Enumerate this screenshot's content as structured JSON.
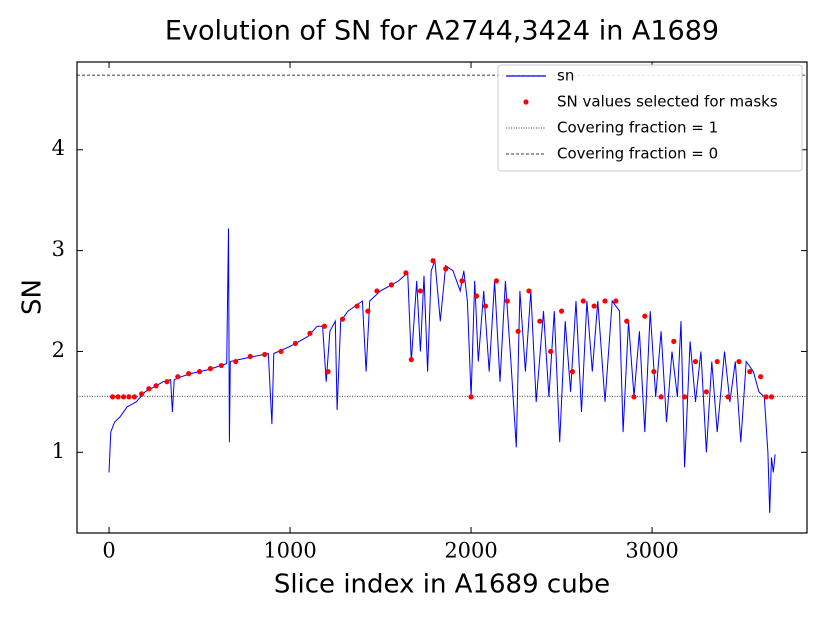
{
  "chart_data": {
    "type": "line",
    "title": "Evolution of SN for A2744,3424 in A1689",
    "xlabel": "Slice index in A1689 cube",
    "ylabel": "SN",
    "xlim": [
      -177,
      3856
    ],
    "ylim": [
      0.2,
      4.87
    ],
    "xticks": [
      0,
      1000,
      2000,
      3000
    ],
    "yticks": [
      1,
      2,
      3,
      4
    ],
    "legend": "upper right",
    "series": [
      {
        "name": "sn",
        "color": "#0000ff",
        "kind": "line",
        "x": [
          0,
          10,
          30,
          60,
          100,
          150,
          200,
          250,
          300,
          340,
          350,
          360,
          400,
          450,
          500,
          550,
          600,
          650,
          660,
          665,
          670,
          720,
          800,
          880,
          900,
          910,
          1000,
          1050,
          1100,
          1150,
          1180,
          1200,
          1220,
          1250,
          1260,
          1280,
          1320,
          1360,
          1400,
          1420,
          1440,
          1500,
          1550,
          1600,
          1650,
          1670,
          1700,
          1720,
          1740,
          1760,
          1780,
          1800,
          1830,
          1860,
          1900,
          1940,
          1960,
          1980,
          2000,
          2020,
          2040,
          2070,
          2100,
          2130,
          2160,
          2190,
          2220,
          2250,
          2270,
          2300,
          2330,
          2360,
          2400,
          2430,
          2460,
          2490,
          2520,
          2550,
          2580,
          2610,
          2640,
          2670,
          2700,
          2740,
          2780,
          2820,
          2840,
          2870,
          2900,
          2930,
          2960,
          2990,
          3020,
          3050,
          3080,
          3110,
          3140,
          3160,
          3180,
          3210,
          3240,
          3270,
          3300,
          3330,
          3360,
          3400,
          3430,
          3460,
          3490,
          3520,
          3560,
          3590,
          3620,
          3640,
          3650,
          3660,
          3670,
          3680
        ],
        "values": [
          0.8,
          1.2,
          1.3,
          1.35,
          1.45,
          1.5,
          1.6,
          1.65,
          1.7,
          1.72,
          1.4,
          1.72,
          1.75,
          1.78,
          1.8,
          1.82,
          1.85,
          1.88,
          3.22,
          1.1,
          1.9,
          1.92,
          1.95,
          1.98,
          1.28,
          1.98,
          2.05,
          2.1,
          2.15,
          2.25,
          2.25,
          1.7,
          2.2,
          2.3,
          1.42,
          2.3,
          2.4,
          2.45,
          2.5,
          1.8,
          2.5,
          2.6,
          2.65,
          2.7,
          2.78,
          1.9,
          2.7,
          2.0,
          2.75,
          1.8,
          2.8,
          2.9,
          2.3,
          2.85,
          2.8,
          2.6,
          2.8,
          2.5,
          1.55,
          2.7,
          1.9,
          2.6,
          1.8,
          2.7,
          1.7,
          2.7,
          1.9,
          1.05,
          2.6,
          1.8,
          2.6,
          1.5,
          2.4,
          1.55,
          2.4,
          1.1,
          2.3,
          1.6,
          2.5,
          1.4,
          2.5,
          1.8,
          2.5,
          1.5,
          2.5,
          2.4,
          1.2,
          2.3,
          1.55,
          2.2,
          1.2,
          2.4,
          1.55,
          2.2,
          1.3,
          2.0,
          1.55,
          2.3,
          0.85,
          2.1,
          1.5,
          2.0,
          1.0,
          1.9,
          1.2,
          2.0,
          1.5,
          1.9,
          1.1,
          1.9,
          1.8,
          1.6,
          1.55,
          1.0,
          0.4,
          0.95,
          0.8,
          0.98
        ]
      },
      {
        "name": "SN values selected for masks",
        "color": "#ff0000",
        "kind": "scatter",
        "x": [
          20,
          50,
          80,
          110,
          140,
          180,
          220,
          260,
          320,
          380,
          440,
          500,
          560,
          620,
          700,
          780,
          860,
          950,
          1030,
          1110,
          1190,
          1210,
          1290,
          1370,
          1430,
          1480,
          1560,
          1640,
          1670,
          1720,
          1790,
          1860,
          1950,
          2000,
          2030,
          2080,
          2140,
          2200,
          2260,
          2320,
          2380,
          2440,
          2500,
          2560,
          2620,
          2680,
          2740,
          2800,
          2860,
          2900,
          2960,
          3010,
          3050,
          3120,
          3180,
          3240,
          3300,
          3360,
          3420,
          3480,
          3540,
          3600,
          3630,
          3660
        ],
        "values": [
          1.55,
          1.55,
          1.55,
          1.55,
          1.55,
          1.58,
          1.63,
          1.66,
          1.7,
          1.75,
          1.78,
          1.8,
          1.83,
          1.86,
          1.9,
          1.95,
          1.97,
          2.0,
          2.08,
          2.18,
          2.25,
          1.8,
          2.32,
          2.45,
          2.4,
          2.6,
          2.66,
          2.78,
          1.92,
          2.6,
          2.9,
          2.82,
          2.7,
          1.55,
          2.55,
          2.45,
          2.7,
          2.5,
          2.2,
          2.6,
          2.3,
          2.0,
          2.4,
          1.8,
          2.5,
          2.45,
          2.5,
          2.5,
          2.3,
          1.55,
          2.35,
          1.8,
          1.55,
          2.1,
          1.55,
          1.9,
          1.6,
          1.9,
          1.55,
          1.9,
          1.8,
          1.75,
          1.55,
          1.55
        ]
      }
    ],
    "hlines": [
      {
        "name": "Covering fraction = 1",
        "value": 1.556,
        "color": "#000000",
        "dash": "1 1.5"
      },
      {
        "name": "Covering fraction = 0",
        "value": 4.74,
        "color": "#000000",
        "dash": "3 2"
      }
    ]
  }
}
